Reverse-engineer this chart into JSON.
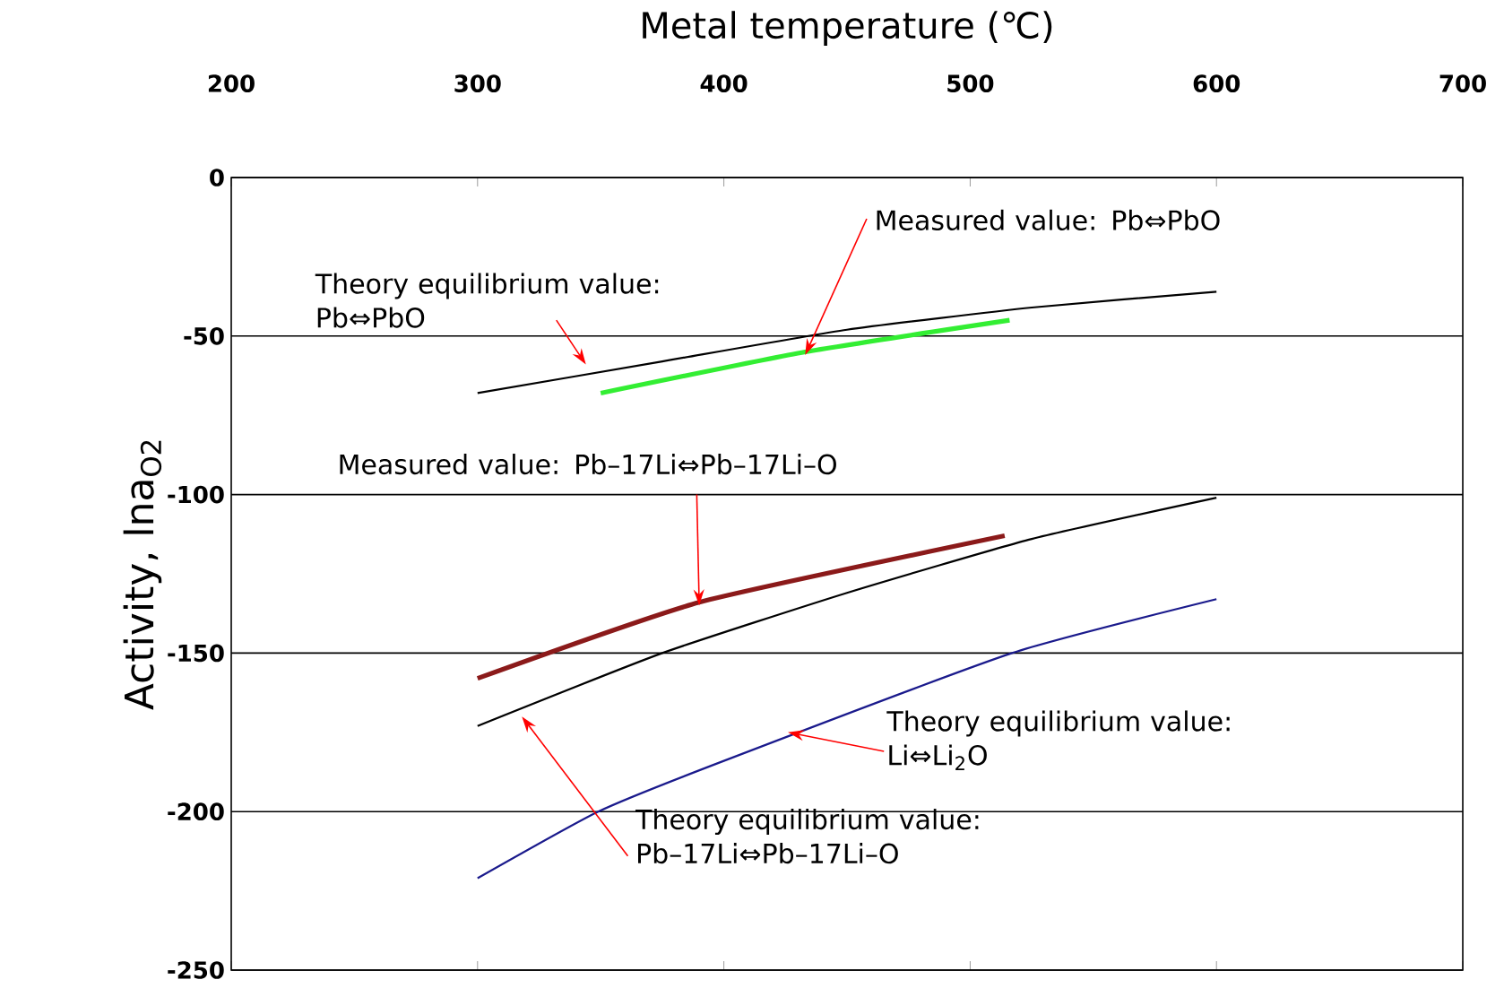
{
  "chart_data": {
    "type": "line",
    "xlabel": "Metal temperature (℃)",
    "ylabel": "Activity, lna$_{O2}$",
    "xlim": [
      200,
      700
    ],
    "xticks": [
      200,
      300,
      400,
      500,
      600,
      700
    ],
    "ylim": [
      -250,
      0
    ],
    "yticks": [
      0,
      -50,
      -100,
      -150,
      -200,
      -250
    ],
    "grid": "y",
    "line_style": "solid",
    "series": [
      {
        "color": "#000000",
        "x": [
          300,
          375,
          450,
          525,
          600
        ],
        "values": [
          -68,
          -58,
          -48,
          -41,
          -36
        ]
      },
      {
        "color": "#33ee33",
        "x": [
          350,
          433,
          516
        ],
        "values": [
          -68,
          -55,
          -45
        ]
      },
      {
        "color": "#8b1a1a",
        "x": [
          300,
          390,
          514
        ],
        "values": [
          -158,
          -134,
          -113
        ]
      },
      {
        "color": "#000000",
        "x": [
          300,
          375,
          450,
          525,
          600
        ],
        "values": [
          -173,
          -150,
          -131,
          -114,
          -101
        ]
      },
      {
        "color": "#1a1a8c",
        "x": [
          300,
          349,
          400,
          517,
          600
        ],
        "values": [
          -221,
          -200,
          -184,
          -150,
          -133
        ]
      }
    ],
    "annotations": [
      {
        "text": "Theory equilibrium value: Pb⇔PbO",
        "x": 344,
        "y": -59
      },
      {
        "text": "Measured value: Pb⇔PbO",
        "x": 433,
        "y": -56
      },
      {
        "text": "Measured value: Pb–17Li⇔Pb–17Li–O",
        "x": 390,
        "y": -135
      },
      {
        "text": "Theory equilibrium value: Li⇔Li$_{2}$O",
        "x": 426,
        "y": -175
      },
      {
        "text": "Theory equilibrium value: Pb–17Li⇔Pb–17Li–O",
        "x": 318,
        "y": -170
      }
    ]
  }
}
